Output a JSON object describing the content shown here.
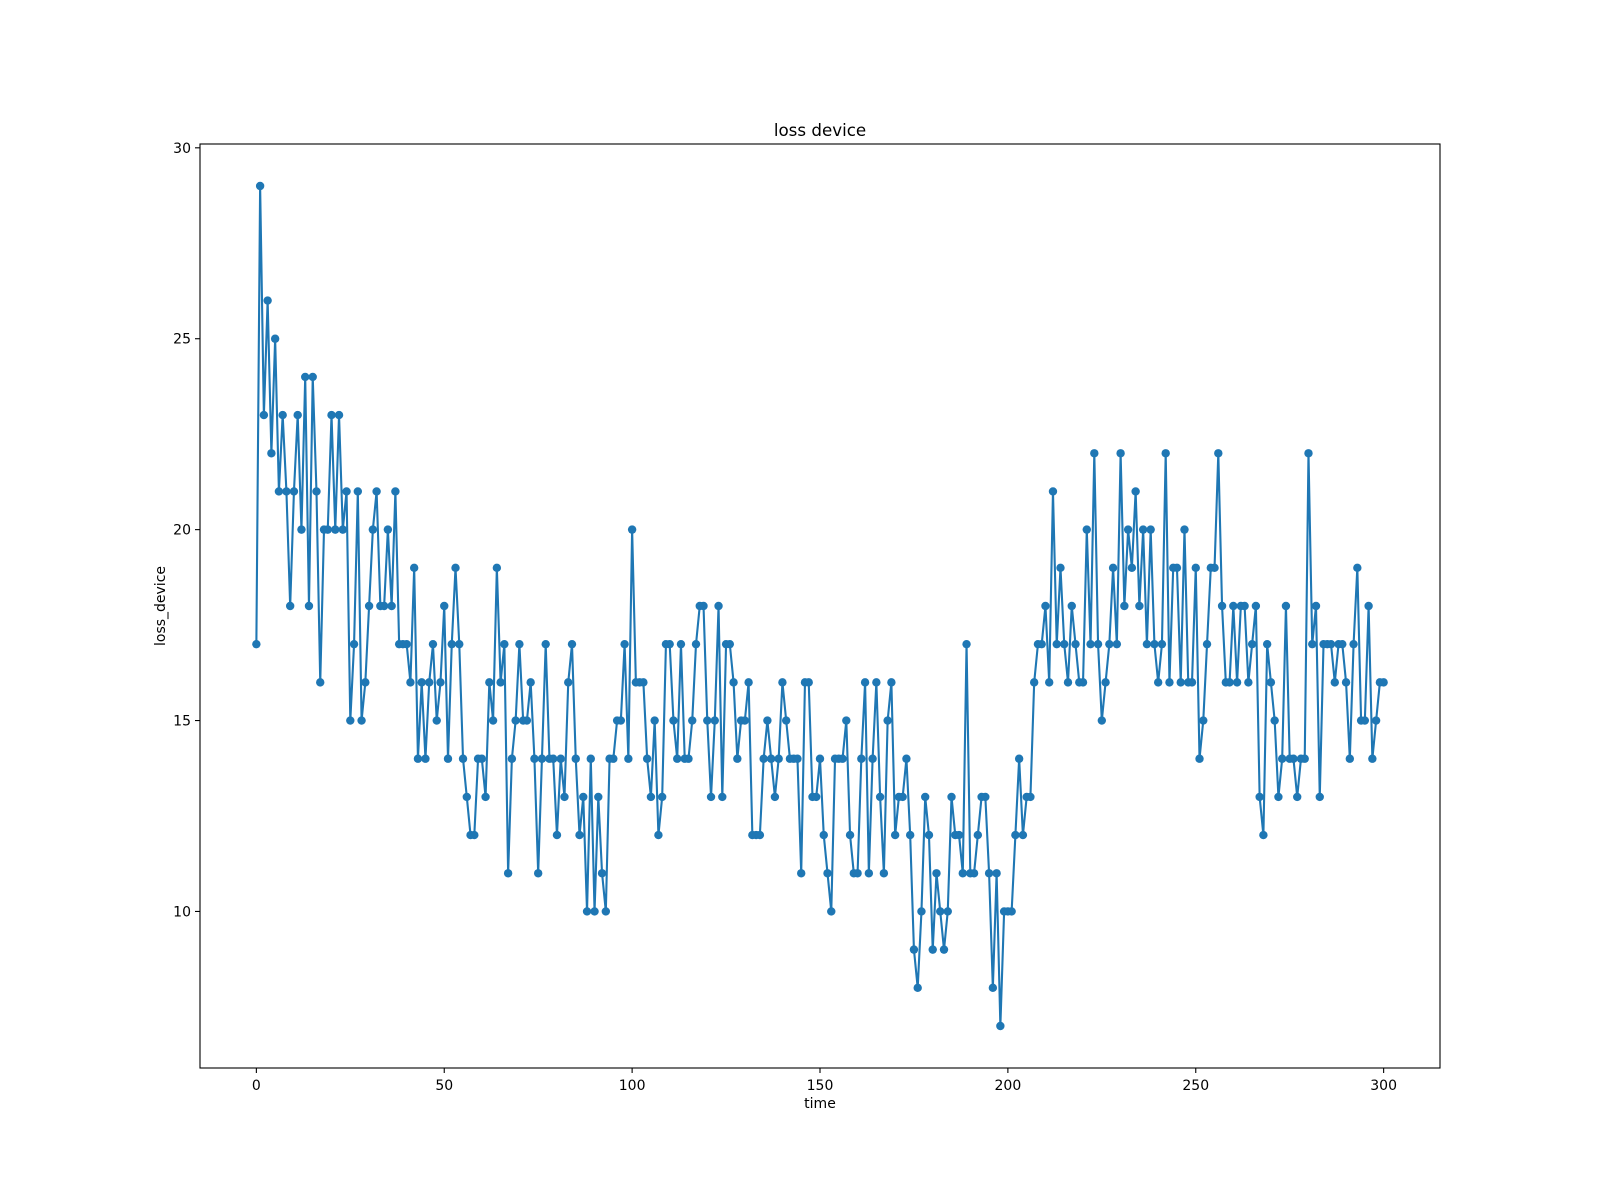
{
  "chart_data": {
    "type": "line",
    "title": "loss device",
    "xlabel": "time",
    "ylabel": "loss_device",
    "color": "#1f77b4",
    "x": [
      0,
      1,
      2,
      3,
      4,
      5,
      6,
      7,
      8,
      9,
      10,
      11,
      12,
      13,
      14,
      15,
      16,
      17,
      18,
      19,
      20,
      21,
      22,
      23,
      24,
      25,
      26,
      27,
      28,
      29,
      30,
      31,
      32,
      33,
      34,
      35,
      36,
      37,
      38,
      39,
      40,
      41,
      42,
      43,
      44,
      45,
      46,
      47,
      48,
      49,
      50,
      51,
      52,
      53,
      54,
      55,
      56,
      57,
      58,
      59,
      60,
      61,
      62,
      63,
      64,
      65,
      66,
      67,
      68,
      69,
      70,
      71,
      72,
      73,
      74,
      75,
      76,
      77,
      78,
      79,
      80,
      81,
      82,
      83,
      84,
      85,
      86,
      87,
      88,
      89,
      90,
      91,
      92,
      93,
      94,
      95,
      96,
      97,
      98,
      99,
      100,
      101,
      102,
      103,
      104,
      105,
      106,
      107,
      108,
      109,
      110,
      111,
      112,
      113,
      114,
      115,
      116,
      117,
      118,
      119,
      120,
      121,
      122,
      123,
      124,
      125,
      126,
      127,
      128,
      129,
      130,
      131,
      132,
      133,
      134,
      135,
      136,
      137,
      138,
      139,
      140,
      141,
      142,
      143,
      144,
      145,
      146,
      147,
      148,
      149,
      150,
      151,
      152,
      153,
      154,
      155,
      156,
      157,
      158,
      159,
      160,
      161,
      162,
      163,
      164,
      165,
      166,
      167,
      168,
      169,
      170,
      171,
      172,
      173,
      174,
      175,
      176,
      177,
      178,
      179,
      180,
      181,
      182,
      183,
      184,
      185,
      186,
      187,
      188,
      189,
      190,
      191,
      192,
      193,
      194,
      195,
      196,
      197,
      198,
      199,
      200,
      201,
      202,
      203,
      204,
      205,
      206,
      207,
      208,
      209,
      210,
      211,
      212,
      213,
      214,
      215,
      216,
      217,
      218,
      219,
      220,
      221,
      222,
      223,
      224,
      225,
      226,
      227,
      228,
      229,
      230,
      231,
      232,
      233,
      234,
      235,
      236,
      237,
      238,
      239,
      240,
      241,
      242,
      243,
      244,
      245,
      246,
      247,
      248,
      249,
      250,
      251,
      252,
      253,
      254,
      255,
      256,
      257,
      258,
      259,
      260,
      261,
      262,
      263,
      264,
      265,
      266,
      267,
      268,
      269,
      270,
      271,
      272,
      273,
      274,
      275,
      276,
      277,
      278,
      279,
      280,
      281,
      282,
      283,
      284,
      285,
      286,
      287,
      288,
      289,
      290,
      291,
      292,
      293,
      294,
      295,
      296,
      297,
      298,
      299,
      300
    ],
    "values": [
      17,
      29,
      23,
      26,
      22,
      25,
      21,
      23,
      21,
      18,
      21,
      23,
      20,
      24,
      18,
      24,
      21,
      16,
      20,
      20,
      23,
      20,
      23,
      20,
      21,
      15,
      17,
      21,
      15,
      16,
      18,
      20,
      21,
      18,
      18,
      20,
      18,
      21,
      17,
      17,
      17,
      16,
      19,
      14,
      16,
      14,
      16,
      17,
      15,
      16,
      18,
      14,
      17,
      19,
      17,
      14,
      13,
      12,
      12,
      14,
      14,
      13,
      16,
      15,
      19,
      16,
      17,
      11,
      14,
      15,
      17,
      15,
      15,
      16,
      14,
      11,
      14,
      17,
      14,
      14,
      12,
      14,
      13,
      16,
      17,
      14,
      12,
      13,
      10,
      14,
      10,
      13,
      11,
      10,
      14,
      14,
      15,
      15,
      17,
      14,
      20,
      16,
      16,
      16,
      14,
      13,
      15,
      12,
      13,
      17,
      17,
      15,
      14,
      17,
      14,
      14,
      15,
      17,
      18,
      18,
      15,
      13,
      15,
      18,
      13,
      17,
      17,
      16,
      14,
      15,
      15,
      16,
      12,
      12,
      12,
      14,
      15,
      14,
      13,
      14,
      16,
      15,
      14,
      14,
      14,
      11,
      16,
      16,
      13,
      13,
      14,
      12,
      11,
      10,
      14,
      14,
      14,
      15,
      12,
      11,
      11,
      14,
      16,
      11,
      14,
      16,
      13,
      11,
      15,
      16,
      12,
      13,
      13,
      14,
      12,
      9,
      8,
      10,
      13,
      12,
      9,
      11,
      10,
      9,
      10,
      13,
      12,
      12,
      11,
      17,
      11,
      11,
      12,
      13,
      13,
      11,
      8,
      11,
      7,
      10,
      10,
      10,
      12,
      14,
      12,
      13,
      13,
      16,
      17,
      17,
      18,
      16,
      21,
      17,
      19,
      17,
      16,
      18,
      17,
      16,
      16,
      20,
      17,
      22,
      17,
      15,
      16,
      17,
      19,
      17,
      22,
      18,
      20,
      19,
      21,
      18,
      20,
      17,
      20,
      17,
      16,
      17,
      22,
      16,
      19,
      19,
      16,
      20,
      16,
      16,
      19,
      14,
      15,
      17,
      19,
      19,
      22,
      18,
      16,
      16,
      18,
      16,
      18,
      18,
      16,
      17,
      18,
      13,
      12,
      17,
      16,
      15,
      13,
      14,
      18,
      14,
      14,
      13,
      14,
      14,
      22,
      17,
      18,
      13,
      17,
      17,
      17,
      16,
      17,
      17,
      16,
      14,
      17,
      19,
      15,
      15,
      18,
      14,
      15,
      16,
      16
    ],
    "xlim": [
      -15,
      315
    ],
    "xticks": [
      0,
      50,
      100,
      150,
      200,
      250,
      300
    ],
    "ylim": [
      5.9,
      30.1
    ],
    "yticks": [
      10,
      15,
      20,
      25,
      30
    ]
  }
}
